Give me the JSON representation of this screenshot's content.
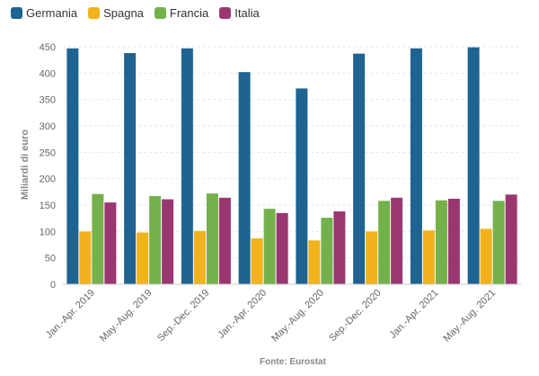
{
  "chart_data": {
    "type": "bar",
    "categories": [
      "Jan.-Apr. 2019",
      "May.-Aug. 2019",
      "Sep.-Dec. 2019",
      "Jan.-Apr. 2020",
      "May.-Aug. 2020",
      "Sep.-Dec. 2020",
      "Jan.-Apr. 2021",
      "May.-Aug. 2021"
    ],
    "series": [
      {
        "name": "Germania",
        "color": "#1f6391",
        "values": [
          447,
          438,
          447,
          402,
          371,
          437,
          447,
          449
        ]
      },
      {
        "name": "Spagna",
        "color": "#f2b21b",
        "values": [
          100,
          98,
          101,
          87,
          83,
          100,
          102,
          105
        ]
      },
      {
        "name": "Francia",
        "color": "#74b14b",
        "values": [
          171,
          167,
          172,
          143,
          126,
          158,
          159,
          158
        ]
      },
      {
        "name": "Italia",
        "color": "#9a3771",
        "values": [
          155,
          161,
          164,
          135,
          138,
          164,
          162,
          170
        ]
      }
    ],
    "ylabel": "Miliardi di euro",
    "ylim": [
      0,
      450
    ],
    "yticks": [
      0,
      50,
      100,
      150,
      200,
      250,
      300,
      350,
      400,
      450
    ],
    "grid": true,
    "legend_position": "top-left",
    "source": "Fonte: Eurostat"
  }
}
